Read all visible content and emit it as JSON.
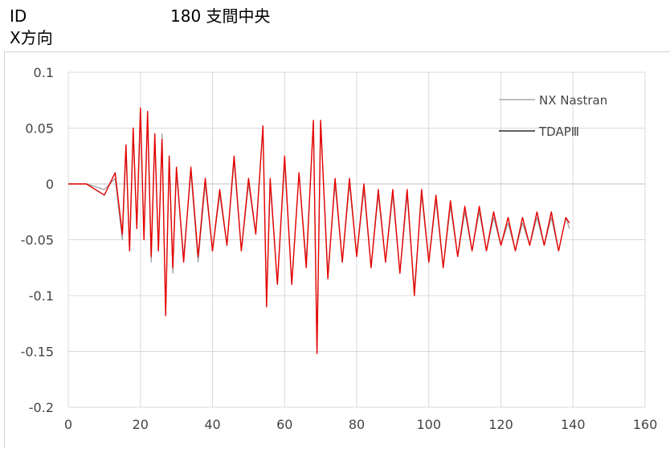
{
  "header": {
    "id_label": "ID",
    "direction_label": "X方向",
    "title": "180 支間中央"
  },
  "chart_data": {
    "type": "line",
    "title": "180 支間中央",
    "xlabel": "",
    "ylabel": "",
    "xlim": [
      0,
      160
    ],
    "ylim": [
      -0.2,
      0.1
    ],
    "x_ticks": [
      0,
      20,
      40,
      60,
      80,
      100,
      120,
      140,
      160
    ],
    "y_ticks": [
      0.1,
      0.05,
      0,
      -0.05,
      -0.1,
      -0.15,
      -0.2
    ],
    "x_tick_labels": [
      "0",
      "20",
      "40",
      "60",
      "80",
      "100",
      "120",
      "140",
      "160"
    ],
    "y_tick_labels": [
      "0.1",
      "0.05",
      "0",
      "-0.05",
      "-0.1",
      "-0.15",
      "-0.2"
    ],
    "grid": true,
    "legend_position": "top-right",
    "series": [
      {
        "name": "NX Nastran",
        "color": "#999999",
        "x": [
          0,
          5,
          10,
          13,
          15,
          16,
          17,
          18,
          19,
          20,
          21,
          22,
          23,
          24,
          25,
          26,
          27,
          28,
          29,
          30,
          32,
          34,
          36,
          38,
          40,
          42,
          44,
          46,
          48,
          50,
          52,
          54,
          55,
          56,
          58,
          60,
          62,
          64,
          66,
          68,
          69,
          70,
          72,
          74,
          76,
          78,
          80,
          82,
          84,
          86,
          88,
          90,
          92,
          94,
          96,
          98,
          100,
          102,
          104,
          106,
          108,
          110,
          112,
          114,
          116,
          118,
          120,
          122,
          124,
          126,
          128,
          130,
          132,
          134,
          136,
          138,
          139
        ],
        "values": [
          0,
          0,
          -0.005,
          0.005,
          -0.05,
          0.03,
          -0.06,
          0.045,
          -0.04,
          0.065,
          -0.05,
          0.06,
          -0.07,
          0.04,
          -0.06,
          0.045,
          -0.115,
          0.02,
          -0.08,
          0.01,
          -0.065,
          0.01,
          -0.07,
          0.0,
          -0.06,
          -0.01,
          -0.055,
          0.02,
          -0.06,
          0.0,
          -0.045,
          0.05,
          -0.105,
          0.0,
          -0.09,
          0.02,
          -0.09,
          0.01,
          -0.07,
          0.055,
          -0.15,
          0.055,
          -0.08,
          0.0,
          -0.07,
          0.0,
          -0.065,
          -0.005,
          -0.075,
          -0.01,
          -0.07,
          -0.01,
          -0.08,
          -0.01,
          -0.095,
          -0.01,
          -0.07,
          -0.015,
          -0.075,
          -0.02,
          -0.065,
          -0.025,
          -0.06,
          -0.025,
          -0.06,
          -0.03,
          -0.055,
          -0.035,
          -0.06,
          -0.035,
          -0.055,
          -0.03,
          -0.055,
          -0.03,
          -0.06,
          -0.03,
          -0.04
        ]
      },
      {
        "name": "TDAPⅢ",
        "color": "#e60000",
        "x": [
          0,
          5,
          10,
          13,
          15,
          16,
          17,
          18,
          19,
          20,
          21,
          22,
          23,
          24,
          25,
          26,
          27,
          28,
          29,
          30,
          32,
          34,
          36,
          38,
          40,
          42,
          44,
          46,
          48,
          50,
          52,
          54,
          55,
          56,
          58,
          60,
          62,
          64,
          66,
          68,
          69,
          70,
          72,
          74,
          76,
          78,
          80,
          82,
          84,
          86,
          88,
          90,
          92,
          94,
          96,
          98,
          100,
          102,
          104,
          106,
          108,
          110,
          112,
          114,
          116,
          118,
          120,
          122,
          124,
          126,
          128,
          130,
          132,
          134,
          136,
          138,
          139
        ],
        "values": [
          0,
          0,
          -0.01,
          0.01,
          -0.045,
          0.035,
          -0.06,
          0.05,
          -0.04,
          0.068,
          -0.05,
          0.065,
          -0.065,
          0.045,
          -0.06,
          0.04,
          -0.118,
          0.025,
          -0.075,
          0.015,
          -0.07,
          0.015,
          -0.065,
          0.005,
          -0.06,
          -0.005,
          -0.055,
          0.025,
          -0.06,
          0.005,
          -0.045,
          0.052,
          -0.11,
          0.005,
          -0.09,
          0.025,
          -0.09,
          0.01,
          -0.075,
          0.057,
          -0.152,
          0.057,
          -0.085,
          0.005,
          -0.07,
          0.005,
          -0.065,
          0.0,
          -0.075,
          -0.005,
          -0.07,
          -0.005,
          -0.08,
          -0.005,
          -0.1,
          -0.005,
          -0.07,
          -0.01,
          -0.075,
          -0.015,
          -0.065,
          -0.02,
          -0.06,
          -0.02,
          -0.06,
          -0.025,
          -0.055,
          -0.03,
          -0.06,
          -0.03,
          -0.055,
          -0.025,
          -0.055,
          -0.025,
          -0.06,
          -0.03,
          -0.035
        ]
      }
    ]
  }
}
